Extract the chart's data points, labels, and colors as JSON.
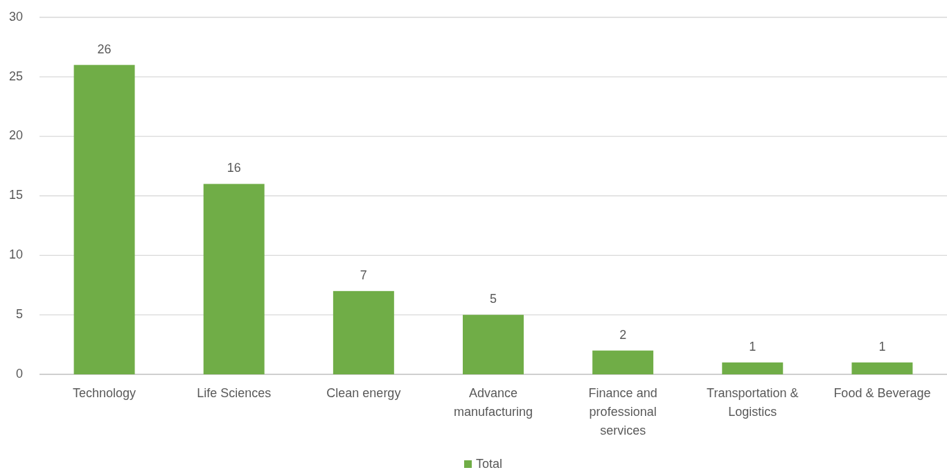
{
  "chart_data": {
    "type": "bar",
    "categories": [
      "Technology",
      "Life Sciences",
      "Clean energy",
      "Advance manufacturing",
      "Finance and professional services",
      "Transportation & Logistics",
      "Food & Beverage"
    ],
    "series": [
      {
        "name": "Total",
        "color": "#70ad47",
        "values": [
          26,
          16,
          7,
          5,
          2,
          1,
          1
        ]
      }
    ],
    "ylim": [
      0,
      30
    ],
    "yticks": [
      0,
      5,
      10,
      15,
      20,
      25,
      30
    ],
    "grid": "y",
    "legend": "bottom",
    "data_labels": true
  }
}
